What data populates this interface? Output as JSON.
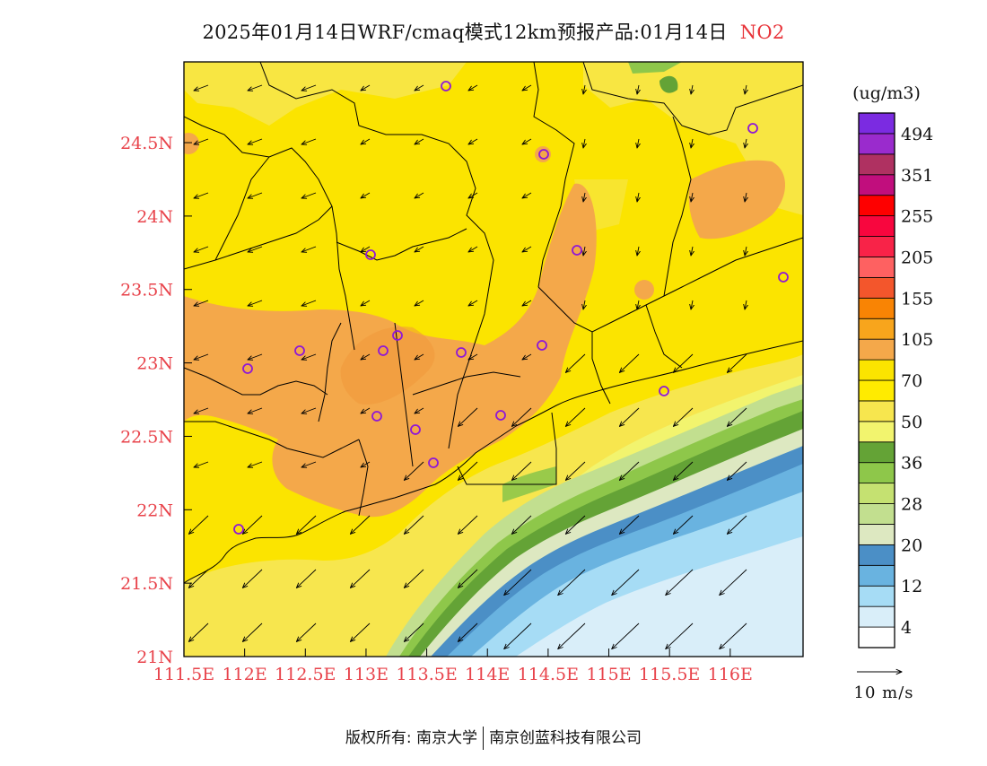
{
  "title": {
    "text": "2025年01月14日WRF/cmaq模式12km预报产品:01月14日",
    "species": "NO2"
  },
  "map": {
    "lat_ticks": [
      "24.5N",
      "24N",
      "23.5N",
      "23N",
      "22.5N",
      "22N",
      "21.5N",
      "21N"
    ],
    "lon_ticks": [
      "111.5E",
      "112E",
      "112.5E",
      "113E",
      "113.5E",
      "114E",
      "114.5E",
      "115E",
      "115.5E",
      "116E"
    ],
    "lon_range": [
      111.5,
      116.6
    ],
    "lat_range": [
      21.0,
      25.05
    ],
    "tick_color": "#e8434b"
  },
  "colorbar": {
    "unit": "(ug/m3)",
    "colors": [
      "#ffffff",
      "#d9eef9",
      "#a6dcf5",
      "#69b3e0",
      "#4b8fc6",
      "#dde8c1",
      "#c2df8f",
      "#c5e171",
      "#8ec74a",
      "#64a336",
      "#f2f46e",
      "#f7e64e",
      "#ffeb00",
      "#fbe400",
      "#f4a84a",
      "#f8a51c",
      "#f98404",
      "#f3562c",
      "#fe6161",
      "#f82348",
      "#f8063e",
      "#fe0000",
      "#c10e7d",
      "#af3161",
      "#9a2bcd",
      "#7b2be1"
    ],
    "labels": [
      "4",
      "12",
      "20",
      "28",
      "36",
      "50",
      "70",
      "105",
      "155",
      "205",
      "255",
      "351",
      "494"
    ]
  },
  "wind_legend": {
    "label": "10 m/s"
  },
  "footer": {
    "left": "版权所有: 南京大学",
    "right": "南京创蓝科技有限公司"
  }
}
